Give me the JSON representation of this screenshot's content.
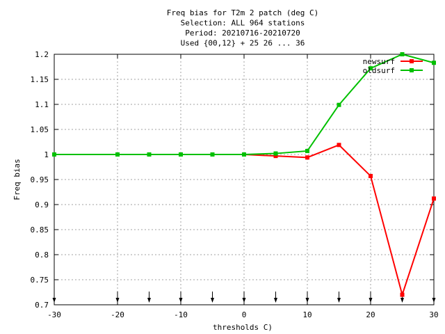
{
  "chart_data": {
    "type": "line",
    "title_lines": [
      "Freq bias  for T2m 2 patch (deg C)",
      "Selection: ALL    964 stations",
      "Period: 20210716-20210720",
      "Used {00,12} + 25 26 ... 36"
    ],
    "xlabel": "thresholds C)",
    "ylabel": "Freq bias",
    "xlim": [
      -30,
      30
    ],
    "ylim": [
      0.7,
      1.2
    ],
    "xticks": [
      -30,
      -20,
      -10,
      0,
      10,
      20,
      30
    ],
    "xtick_labels": [
      "-30",
      "-20",
      "-10",
      "0",
      "10",
      "20",
      "30"
    ],
    "yticks": [
      0.7,
      0.75,
      0.8,
      0.85,
      0.9,
      0.95,
      1,
      1.05,
      1.1,
      1.15,
      1.2
    ],
    "ytick_labels": [
      "0.7",
      "0.75",
      "0.8",
      "0.85",
      "0.9",
      "0.95",
      "1",
      "1.05",
      "1.1",
      "1.15",
      "1.2"
    ],
    "grid": true,
    "legend_position": "top-right",
    "arrow_thresholds": [
      -30,
      -20,
      -15,
      -10,
      -5,
      0,
      5,
      10,
      15,
      20,
      25,
      30
    ],
    "series": [
      {
        "name": "newsurf",
        "color": "#ff0000",
        "x": [
          -30,
          -20,
          -15,
          -10,
          -5,
          0,
          5,
          10,
          15,
          20,
          25,
          30
        ],
        "values": [
          1.0,
          1.0,
          1.0,
          1.0,
          1.0,
          1.0,
          0.997,
          0.994,
          1.019,
          0.957,
          0.72,
          0.912
        ]
      },
      {
        "name": "oldsurf",
        "color": "#00c000",
        "x": [
          -30,
          -20,
          -15,
          -10,
          -5,
          0,
          5,
          10,
          15,
          20,
          25,
          30
        ],
        "values": [
          1.0,
          1.0,
          1.0,
          1.0,
          1.0,
          1.0,
          1.002,
          1.007,
          1.099,
          1.172,
          1.2,
          1.183
        ]
      }
    ]
  }
}
